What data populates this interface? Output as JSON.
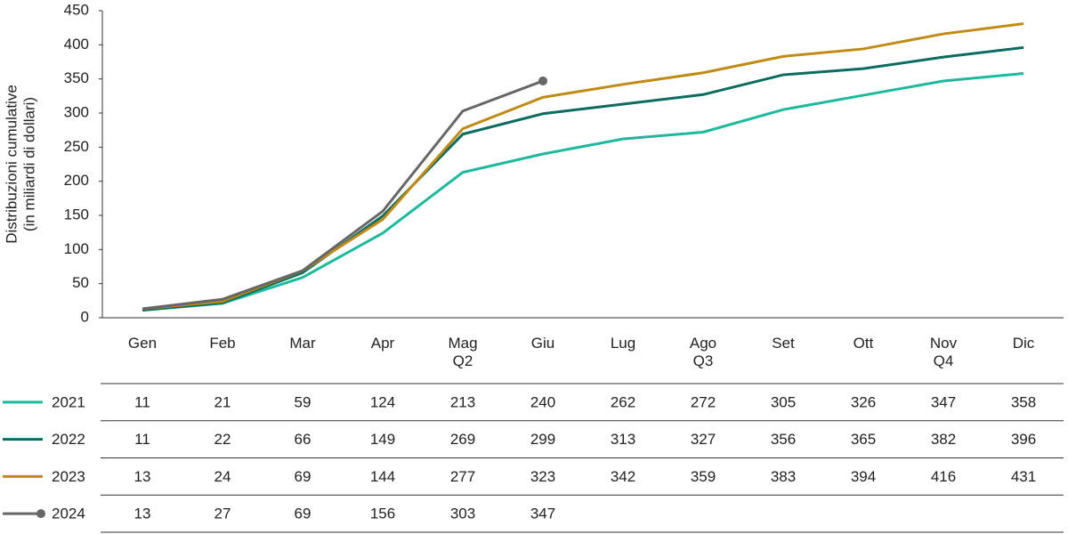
{
  "chart_data": {
    "type": "line",
    "y_label": [
      "Distribuzioni cumulative",
      "(in miliardi di dollari)"
    ],
    "categories": [
      "Gen",
      "Feb",
      "Mar",
      "Apr",
      "Mag\nQ2",
      "Giu",
      "Lug",
      "Ago\nQ3",
      "Set",
      "Ott",
      "Nov\nQ4",
      "Dic"
    ],
    "series": [
      {
        "name": "2021",
        "color": "#1db99d",
        "values": [
          11,
          21,
          59,
          124,
          213,
          240,
          262,
          272,
          305,
          326,
          347,
          358
        ]
      },
      {
        "name": "2022",
        "color": "#0b6b5f",
        "values": [
          11,
          22,
          66,
          149,
          269,
          299,
          313,
          327,
          356,
          365,
          382,
          396
        ]
      },
      {
        "name": "2023",
        "color": "#c08b14",
        "values": [
          13,
          24,
          69,
          144,
          277,
          323,
          342,
          359,
          383,
          394,
          416,
          431
        ]
      },
      {
        "name": "2024",
        "color": "#666666",
        "end_marker": true,
        "values": [
          13,
          27,
          69,
          156,
          303,
          347,
          null,
          null,
          null,
          null,
          null,
          null
        ]
      }
    ],
    "ylim": [
      0,
      450
    ],
    "yticks": [
      0,
      50,
      100,
      150,
      200,
      250,
      300,
      350,
      400,
      450
    ],
    "grid": false,
    "data_table": true
  }
}
